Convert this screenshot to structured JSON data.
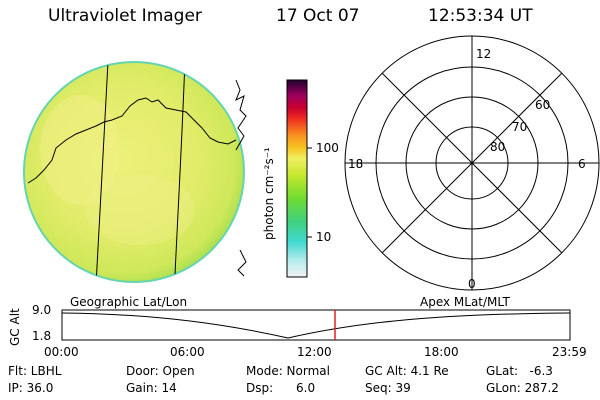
{
  "header": {
    "instrument": "Ultraviolet Imager",
    "date": "17 Oct 07",
    "time": "12:53:34 UT"
  },
  "colorbar": {
    "unit_label": "photon cm⁻²s⁻¹",
    "ticks": [
      "100",
      "10"
    ]
  },
  "polar_plot": {
    "mlt_labels": {
      "top": "12",
      "left": "18",
      "right": "6",
      "bottom": "0"
    },
    "lat_labels": [
      "60",
      "70",
      "80"
    ]
  },
  "timeline": {
    "left_title": "Geographic Lat/Lon",
    "right_title": "Apex MLat/MLT",
    "axis_label": "GC Alt",
    "y_ticks": [
      "9.0",
      "1.8"
    ],
    "x_ticks": [
      "00:00",
      "06:00",
      "12:00",
      "18:00",
      "23:59"
    ],
    "marker_time": "12:53",
    "marker_color": "#e02020"
  },
  "info": {
    "row1": {
      "filter": "Flt: LBHL",
      "door": "Door: Open",
      "mode": "Mode: Normal",
      "gc_alt": "GC Alt: 4.1 Re",
      "glat": "GLat:   -6.3"
    },
    "row2": {
      "ip": "IP: 36.0",
      "gain": "Gain: 14",
      "dsp": "Dsp:      6.0",
      "seq": "Seq: 39",
      "glon": "GLon: 287.2"
    }
  }
}
